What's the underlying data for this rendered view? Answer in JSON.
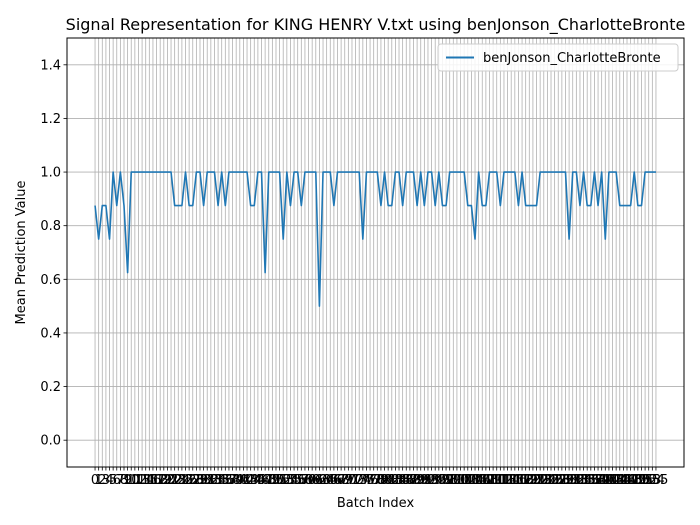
{
  "chart_data": {
    "type": "line",
    "title": "Signal Representation for KING HENRY V.txt using benJonson_CharlotteBronte",
    "xlabel": "Batch Index",
    "ylabel": "Mean Prediction Value",
    "xlim": [
      -7.75,
      162.75
    ],
    "ylim": [
      -0.1,
      1.5
    ],
    "yticks": [
      0.0,
      0.2,
      0.4,
      0.6,
      0.8,
      1.0,
      1.2,
      1.4
    ],
    "ytick_labels": [
      "0.0",
      "0.2",
      "0.4",
      "0.6",
      "0.8",
      "1.0",
      "1.2",
      "1.4"
    ],
    "x_tick_step": 1,
    "grid": true,
    "legend_position": "top-right",
    "series": [
      {
        "name": "benJonson_CharlotteBronte",
        "color": "#1f77b4",
        "x": [
          0,
          1,
          2,
          3,
          4,
          5,
          6,
          7,
          8,
          9,
          10,
          11,
          12,
          13,
          14,
          15,
          16,
          17,
          18,
          19,
          20,
          21,
          22,
          23,
          24,
          25,
          26,
          27,
          28,
          29,
          30,
          31,
          32,
          33,
          34,
          35,
          36,
          37,
          38,
          39,
          40,
          41,
          42,
          43,
          44,
          45,
          46,
          47,
          48,
          49,
          50,
          51,
          52,
          53,
          54,
          55,
          56,
          57,
          58,
          59,
          60,
          61,
          62,
          63,
          64,
          65,
          66,
          67,
          68,
          69,
          70,
          71,
          72,
          73,
          74,
          75,
          76,
          77,
          78,
          79,
          80,
          81,
          82,
          83,
          84,
          85,
          86,
          87,
          88,
          89,
          90,
          91,
          92,
          93,
          94,
          95,
          96,
          97,
          98,
          99,
          100,
          101,
          102,
          103,
          104,
          105,
          106,
          107,
          108,
          109,
          110,
          111,
          112,
          113,
          114,
          115,
          116,
          117,
          118,
          119,
          120,
          121,
          122,
          123,
          124,
          125,
          126,
          127,
          128,
          129,
          130,
          131,
          132,
          133,
          134,
          135,
          136,
          137,
          138,
          139,
          140,
          141,
          142,
          143,
          144,
          145,
          146,
          147,
          148,
          149,
          150,
          151,
          152,
          153,
          154,
          155
        ],
        "values": [
          0.875,
          0.75,
          0.875,
          0.875,
          0.75,
          1.0,
          0.875,
          1.0,
          0.875,
          0.625,
          1.0,
          1.0,
          1.0,
          1.0,
          1.0,
          1.0,
          1.0,
          1.0,
          1.0,
          1.0,
          1.0,
          1.0,
          0.875,
          0.875,
          0.875,
          1.0,
          0.875,
          0.875,
          1.0,
          1.0,
          0.875,
          1.0,
          1.0,
          1.0,
          0.875,
          1.0,
          0.875,
          1.0,
          1.0,
          1.0,
          1.0,
          1.0,
          1.0,
          0.875,
          0.875,
          1.0,
          1.0,
          0.625,
          1.0,
          1.0,
          1.0,
          1.0,
          0.75,
          1.0,
          0.875,
          1.0,
          1.0,
          0.875,
          1.0,
          1.0,
          1.0,
          1.0,
          0.5,
          1.0,
          1.0,
          1.0,
          0.875,
          1.0,
          1.0,
          1.0,
          1.0,
          1.0,
          1.0,
          1.0,
          0.75,
          1.0,
          1.0,
          1.0,
          1.0,
          0.875,
          1.0,
          0.875,
          0.875,
          1.0,
          1.0,
          0.875,
          1.0,
          1.0,
          1.0,
          0.875,
          1.0,
          0.875,
          1.0,
          1.0,
          0.875,
          1.0,
          0.875,
          0.875,
          1.0,
          1.0,
          1.0,
          1.0,
          1.0,
          0.875,
          0.875,
          0.75,
          1.0,
          0.875,
          0.875,
          1.0,
          1.0,
          1.0,
          0.875,
          1.0,
          1.0,
          1.0,
          1.0,
          0.875,
          1.0,
          0.875,
          0.875,
          0.875,
          0.875,
          1.0,
          1.0,
          1.0,
          1.0,
          1.0,
          1.0,
          1.0,
          1.0,
          0.75,
          1.0,
          1.0,
          0.875,
          1.0,
          0.875,
          0.875,
          1.0,
          0.875,
          1.0,
          0.75,
          1.0,
          1.0,
          1.0,
          0.875,
          0.875,
          0.875,
          0.875,
          1.0,
          0.875,
          0.875,
          1.0,
          1.0,
          1.0,
          1.0
        ]
      }
    ]
  }
}
